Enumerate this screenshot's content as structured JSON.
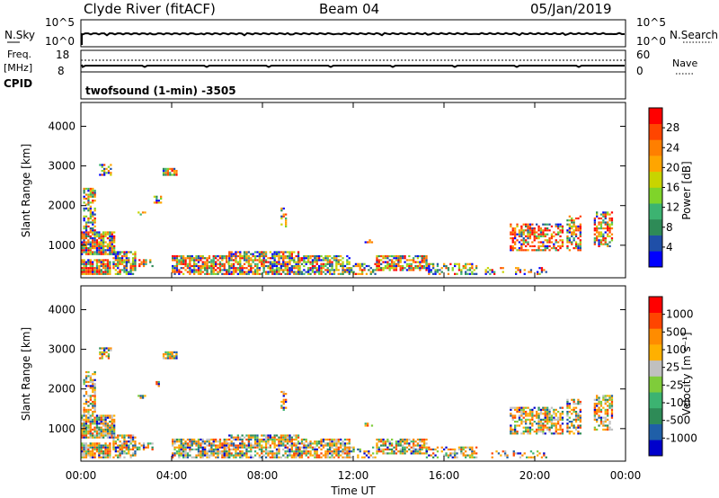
{
  "header": {
    "station": "Clyde River (fitACF)",
    "beam": "Beam 04",
    "date": "05/Jan/2019"
  },
  "nsky_panel": {
    "left_label": "N.Sky",
    "right_label": "N.Search",
    "left_ticks": [
      "10^5",
      "10^0"
    ],
    "right_ticks": [
      "10^5",
      "10^0"
    ]
  },
  "freq_panel": {
    "left_label_1": "Freq.",
    "left_label_2": "[MHz]",
    "right_label": "Nave",
    "left_ticks": [
      "18",
      "8"
    ],
    "right_ticks": [
      "60",
      "0"
    ]
  },
  "cpid_panel": {
    "label": "CPID",
    "text": "twofsound (1-min) -3505"
  },
  "colors": {
    "power_scale": [
      "#0000ff",
      "#1f4fa8",
      "#2e8b57",
      "#3cb371",
      "#7fd42a",
      "#c8d400",
      "#ffa500",
      "#ff7f00",
      "#ff4500",
      "#ff0000"
    ],
    "velocity_scale": [
      "#ff0000",
      "#ff4500",
      "#ff8c00",
      "#ffb000",
      "#c0c0c0",
      "#7fcc3a",
      "#3cb371",
      "#2e8b57",
      "#1f5fa8",
      "#0000cc"
    ]
  },
  "chart_data": [
    {
      "type": "heatmap",
      "name_id": "power",
      "ylabel": "Slant Range [km]",
      "yticks": [
        1000,
        2000,
        3000,
        4000
      ],
      "ylim": [
        180,
        4600
      ],
      "xlim_hours": [
        0,
        24
      ],
      "colorbar_label": "Power [dB]",
      "colorbar_ticks": [
        "4",
        "8",
        "12",
        "16",
        "20",
        "24",
        "28"
      ]
    },
    {
      "type": "heatmap",
      "name_id": "velocity",
      "ylabel": "Slant Range [km]",
      "yticks": [
        1000,
        2000,
        3000,
        4000
      ],
      "ylim": [
        180,
        4600
      ],
      "xlim_hours": [
        0,
        24
      ],
      "xlabel": "Time UT",
      "xticks": [
        "00:00",
        "04:00",
        "08:00",
        "12:00",
        "16:00",
        "20:00",
        "00:00"
      ],
      "colorbar_label": "Velocity [m s⁻¹]",
      "colorbar_ticks": [
        "1000",
        "500",
        "100",
        "25",
        "-25",
        "-100",
        "-500",
        "-1000"
      ]
    }
  ]
}
